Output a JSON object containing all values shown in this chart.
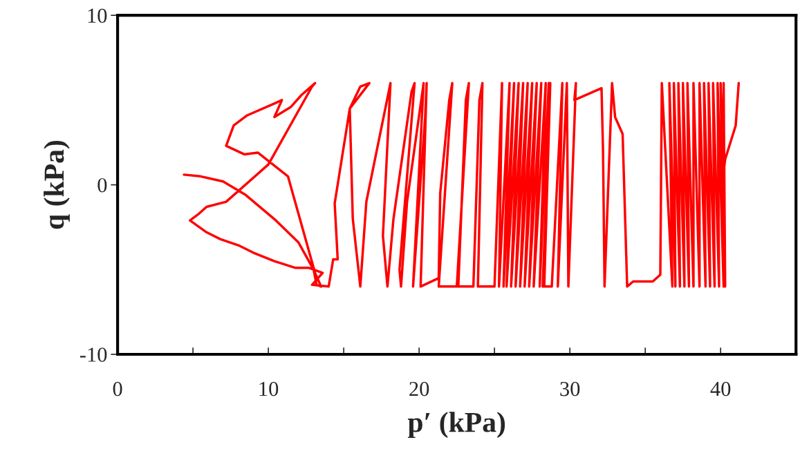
{
  "chart_data": {
    "type": "line",
    "xlabel": "p′ (kPa)",
    "ylabel": "q (kPa)",
    "xlim": [
      0,
      45
    ],
    "xticks": [
      0,
      {
        "value": 5,
        "label": null
      },
      10,
      {
        "value": 15,
        "label": null
      },
      20,
      {
        "value": 25,
        "label": null
      },
      30,
      {
        "value": 35,
        "label": null
      },
      40
    ],
    "ylim": [
      -10,
      10
    ],
    "yticks": [
      -10,
      0,
      10
    ],
    "grid": false,
    "legend": false,
    "marker": "none",
    "line_style": "solid",
    "series": [
      {
        "color": "#ff0000",
        "x": [
          4.4,
          5.5,
          7,
          8.5,
          10.5,
          12,
          13,
          13.2,
          13.5,
          13.1,
          11.3,
          9.3,
          8.4,
          7.2,
          7.7,
          8.6,
          10.4,
          10.9,
          10.4,
          11.5,
          12.2,
          13.1,
          12.9,
          10,
          7.2,
          5.9,
          5.4,
          4.8,
          5.9,
          6.8,
          8.1,
          9,
          10.4,
          11.8,
          12.7,
          13.6,
          12.9,
          14,
          14.3,
          14.6,
          14.4,
          15.4,
          16.1,
          16.7,
          15.4,
          15.6,
          16.1,
          16.5,
          18.1,
          17.6,
          17.9,
          18.3,
          19.5,
          19.7,
          18.7,
          18.8,
          19.2,
          20.3,
          19.6,
          20.4,
          20.5,
          20.1,
          21.3,
          21.4,
          22,
          22.2,
          21.3,
          22.6,
          23.1,
          23.3,
          22.5,
          23.6,
          24,
          24.2,
          23.9,
          25,
          25.5,
          25.3,
          26,
          25.6,
          26.3,
          25.8,
          26.6,
          26.1,
          26.9,
          26.4,
          27.2,
          26.7,
          27.5,
          27,
          27.8,
          27.3,
          28.1,
          27.6,
          28.4,
          28,
          28.6,
          28.3,
          28.7,
          28.2,
          28.8,
          29.5,
          29.2,
          29.8,
          29.9,
          30.4,
          30.3,
          32.1,
          32.2,
          32.3,
          32.8,
          33,
          33.5,
          33.8,
          34.2,
          35.5,
          36,
          36.1,
          36.8,
          36.6,
          37,
          36.9,
          37.3,
          37.2,
          37.6,
          37.5,
          37.9,
          37.8,
          38.2,
          38.2,
          38.6,
          38.6,
          39,
          38.9,
          39.3,
          39.2,
          39.6,
          39.5,
          39.9,
          39.8,
          40.2,
          40,
          40.3,
          40.2,
          40.1,
          40.3,
          41,
          41.2
        ],
        "values": [
          0.6,
          0.5,
          0.2,
          -0.6,
          -2.1,
          -3.4,
          -5,
          -5.9,
          -6,
          -5.2,
          0.5,
          1.9,
          1.8,
          2.3,
          3.5,
          4.1,
          4.8,
          5,
          4,
          4.6,
          5.3,
          6,
          5.8,
          1.2,
          -1,
          -1.3,
          -1.7,
          -2.1,
          -2.8,
          -3.2,
          -3.6,
          -4,
          -4.5,
          -4.9,
          -4.9,
          -5.2,
          -5.9,
          -6,
          -4.4,
          -4.4,
          -1.1,
          4.5,
          5.8,
          6,
          4.5,
          -2,
          -6,
          -1,
          6,
          -3,
          -6,
          -2,
          5.5,
          6,
          -5,
          -6,
          -1,
          6,
          -6,
          4,
          6,
          -6,
          -5.5,
          -0.5,
          5,
          6,
          -6,
          -6,
          5,
          6,
          -6,
          -6,
          5,
          6,
          -6,
          -6,
          6,
          -6,
          6,
          -6,
          6,
          -6,
          6,
          -6,
          6,
          -6,
          6,
          -6,
          6,
          -6,
          6,
          -6,
          6,
          -6,
          6,
          -6,
          6,
          -6,
          6,
          -6,
          -6,
          6,
          -6,
          6,
          -6,
          6,
          5,
          5.7,
          2,
          -6,
          6,
          4,
          3,
          -6,
          -5.7,
          -5.7,
          -5.3,
          6,
          -6,
          6,
          -6,
          6,
          -6,
          6,
          -6,
          6,
          -6,
          6,
          -6,
          6,
          -6,
          6,
          -6,
          6,
          -6,
          6,
          -6,
          6,
          -6,
          6,
          -6,
          6,
          -6,
          6,
          0,
          1.5,
          3.5,
          6
        ]
      }
    ]
  }
}
